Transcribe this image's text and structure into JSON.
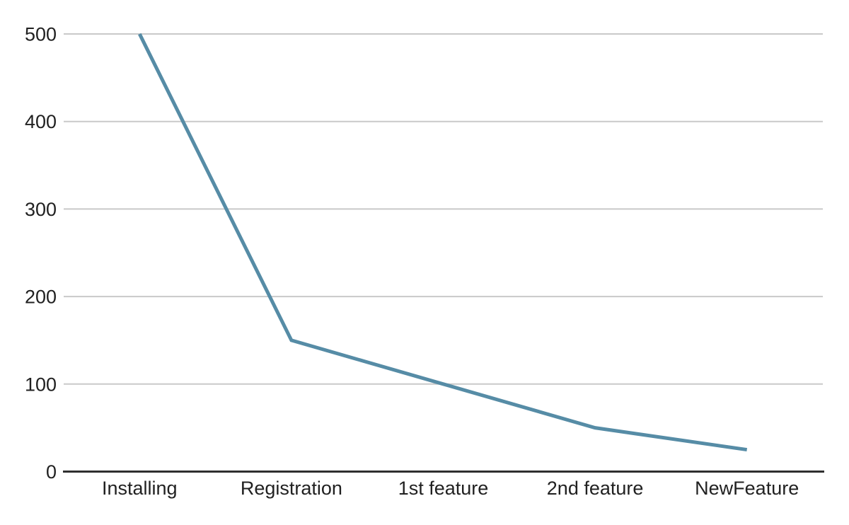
{
  "chart_data": {
    "type": "line",
    "title": "",
    "xlabel": "",
    "ylabel": "",
    "categories": [
      "Installing",
      "Registration",
      "1st feature",
      "2nd feature",
      "NewFeature"
    ],
    "series": [
      {
        "name": "values",
        "values": [
          500,
          150,
          100,
          50,
          25
        ]
      }
    ],
    "ylim": [
      0,
      500
    ],
    "yticks": [
      0,
      100,
      200,
      300,
      400,
      500
    ],
    "grid": true,
    "legend": false,
    "colors": {
      "line": "#568CA6",
      "gridline": "#C9C9C9",
      "axis": "#2F2F2F",
      "text": "#212121",
      "background": "#FFFFFF"
    }
  }
}
